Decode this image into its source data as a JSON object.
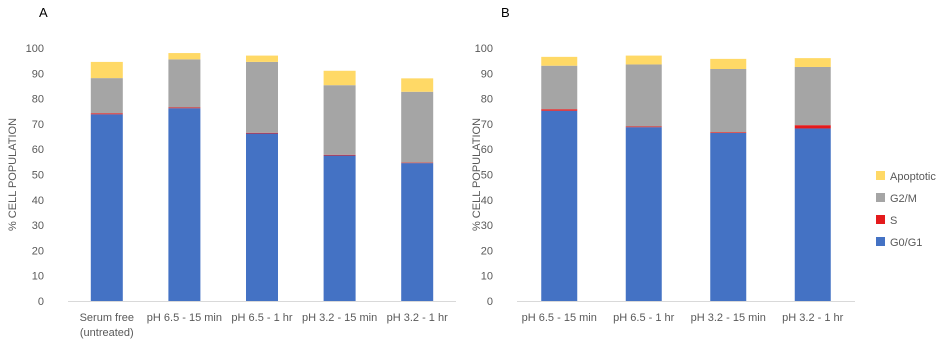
{
  "chart_data": [
    {
      "type": "bar",
      "stacked": true,
      "panel_label": "A",
      "ylabel": "% CELL POPULATION",
      "ylim": [
        0,
        100
      ],
      "yticks": [
        0,
        10,
        20,
        30,
        40,
        50,
        60,
        70,
        80,
        90,
        100
      ],
      "grid": false,
      "categories": [
        [
          "Serum free",
          "(untreated)"
        ],
        [
          "pH 6.5 - 15 min"
        ],
        [
          "pH 6.5 - 1 hr"
        ],
        [
          "pH 3.2 - 15 min"
        ],
        [
          "pH 3.2 - 1 hr"
        ]
      ],
      "series": [
        {
          "name": "G0/G1",
          "color": "#4472C4",
          "values": [
            73.8,
            76.2,
            66.2,
            57.5,
            54.5
          ]
        },
        {
          "name": "S",
          "color": "#E41A1C",
          "values": [
            0.4,
            0.3,
            0.3,
            0.3,
            0.2
          ]
        },
        {
          "name": "G2/M",
          "color": "#A5A5A5",
          "values": [
            13.9,
            19.0,
            28.0,
            27.5,
            28.0
          ]
        },
        {
          "name": "Apoptotic",
          "color": "#FFD966",
          "values": [
            6.4,
            2.5,
            2.5,
            5.7,
            5.3
          ]
        }
      ]
    },
    {
      "type": "bar",
      "stacked": true,
      "panel_label": "B",
      "ylabel": "% CELL POPULATION",
      "ylim": [
        0,
        100
      ],
      "yticks": [
        0,
        10,
        20,
        30,
        40,
        50,
        60,
        70,
        80,
        90,
        100
      ],
      "grid": false,
      "categories": [
        [
          "pH 6.5 - 15 min"
        ],
        [
          "pH 6.5 - 1 hr"
        ],
        [
          "pH 3.2 - 15 min"
        ],
        [
          "pH 3.2 - 1 hr"
        ]
      ],
      "series": [
        {
          "name": "G0/G1",
          "color": "#4472C4",
          "values": [
            75.2,
            68.7,
            66.4,
            68.2
          ]
        },
        {
          "name": "S",
          "color": "#E41A1C",
          "values": [
            0.6,
            0.3,
            0.3,
            1.3
          ]
        },
        {
          "name": "G2/M",
          "color": "#A5A5A5",
          "values": [
            17.2,
            24.5,
            25.0,
            23.0
          ]
        },
        {
          "name": "Apoptotic",
          "color": "#FFD966",
          "values": [
            3.5,
            3.5,
            4.0,
            3.5
          ]
        }
      ],
      "legend": {
        "position": "right",
        "entries": [
          "Apoptotic",
          "G2/M",
          "S",
          "G0/G1"
        ]
      }
    }
  ]
}
